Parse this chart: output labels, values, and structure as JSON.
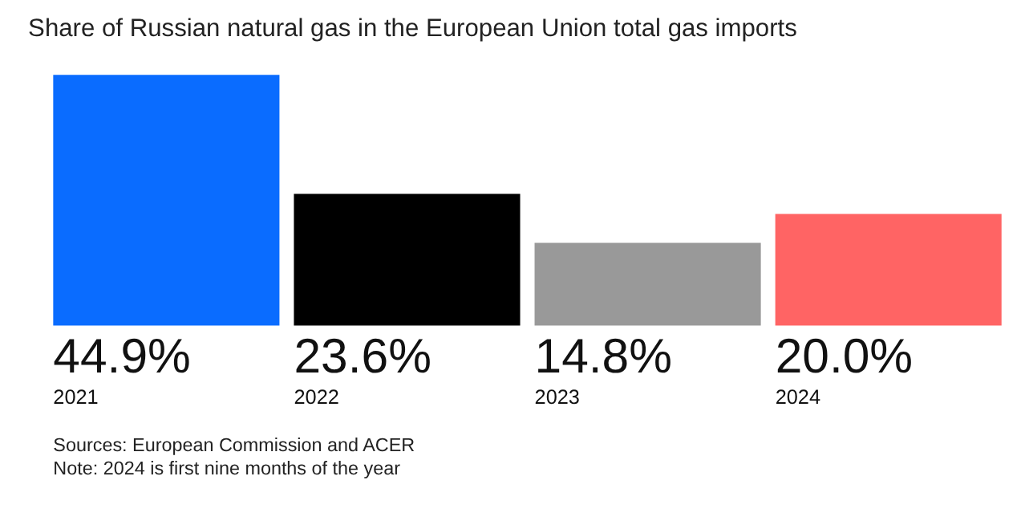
{
  "chart_data": {
    "type": "bar",
    "title": "Share of Russian natural gas in the European Union total gas imports",
    "categories": [
      "2021",
      "2022",
      "2023",
      "2024"
    ],
    "values": [
      44.9,
      23.6,
      14.8,
      20.0
    ],
    "colors": [
      "#0a6cff",
      "#000000",
      "#999999",
      "#ff6464"
    ],
    "value_labels": [
      "44.9%",
      "23.6%",
      "14.8%",
      "20.0%"
    ],
    "annotations": [
      "Sources: European Commission and ACER",
      "Note: 2024 is first nine months of the year"
    ]
  }
}
